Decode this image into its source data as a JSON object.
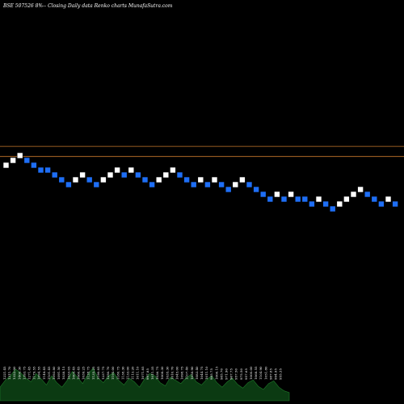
{
  "chart_data": {
    "type": "renko",
    "title": "BSE 507526  8%-- Closing Daily data  Renko  charts MunafaSutra.com",
    "colors": {
      "background": "#000000",
      "up_brick": "#ffffff",
      "down_brick": "#1e6ef5",
      "brick_outline": "#000000",
      "reference_line": "#c8782c",
      "volume_area": "#0b3a12",
      "volume_edge": "#1f7a2a",
      "text": "#ffffff"
    },
    "reference_lines": [
      {
        "level_bricks": 3.9
      },
      {
        "level_bricks": 1.8
      }
    ],
    "bricks": [
      {
        "level": 0,
        "direction": "up"
      },
      {
        "level": 1,
        "direction": "up"
      },
      {
        "level": 2,
        "direction": "up"
      },
      {
        "level": 1,
        "direction": "down"
      },
      {
        "level": 0,
        "direction": "down"
      },
      {
        "level": -1,
        "direction": "down"
      },
      {
        "level": -1,
        "direction": "down"
      },
      {
        "level": -2,
        "direction": "down"
      },
      {
        "level": -3,
        "direction": "down"
      },
      {
        "level": -4,
        "direction": "down"
      },
      {
        "level": -3,
        "direction": "up"
      },
      {
        "level": -2,
        "direction": "up"
      },
      {
        "level": -3,
        "direction": "down"
      },
      {
        "level": -4,
        "direction": "down"
      },
      {
        "level": -3,
        "direction": "up"
      },
      {
        "level": -2,
        "direction": "up"
      },
      {
        "level": -1,
        "direction": "up"
      },
      {
        "level": -2,
        "direction": "down"
      },
      {
        "level": -1,
        "direction": "up"
      },
      {
        "level": -2,
        "direction": "down"
      },
      {
        "level": -3,
        "direction": "down"
      },
      {
        "level": -4,
        "direction": "down"
      },
      {
        "level": -3,
        "direction": "up"
      },
      {
        "level": -2,
        "direction": "up"
      },
      {
        "level": -1,
        "direction": "up"
      },
      {
        "level": -2,
        "direction": "down"
      },
      {
        "level": -3,
        "direction": "down"
      },
      {
        "level": -4,
        "direction": "down"
      },
      {
        "level": -3,
        "direction": "up"
      },
      {
        "level": -4,
        "direction": "down"
      },
      {
        "level": -3,
        "direction": "up"
      },
      {
        "level": -4,
        "direction": "down"
      },
      {
        "level": -5,
        "direction": "down"
      },
      {
        "level": -4,
        "direction": "up"
      },
      {
        "level": -3,
        "direction": "up"
      },
      {
        "level": -4,
        "direction": "down"
      },
      {
        "level": -5,
        "direction": "down"
      },
      {
        "level": -6,
        "direction": "down"
      },
      {
        "level": -7,
        "direction": "down"
      },
      {
        "level": -6,
        "direction": "up"
      },
      {
        "level": -7,
        "direction": "down"
      },
      {
        "level": -6,
        "direction": "up"
      },
      {
        "level": -7,
        "direction": "down"
      },
      {
        "level": -7,
        "direction": "down"
      },
      {
        "level": -8,
        "direction": "down"
      },
      {
        "level": -7,
        "direction": "up"
      },
      {
        "level": -8,
        "direction": "down"
      },
      {
        "level": -9,
        "direction": "down"
      },
      {
        "level": -8,
        "direction": "up"
      },
      {
        "level": -7,
        "direction": "up"
      },
      {
        "level": -6,
        "direction": "up"
      },
      {
        "level": -5,
        "direction": "up"
      },
      {
        "level": -6,
        "direction": "down"
      },
      {
        "level": -7,
        "direction": "down"
      },
      {
        "level": -8,
        "direction": "down"
      },
      {
        "level": -7,
        "direction": "up"
      },
      {
        "level": -8,
        "direction": "down"
      }
    ],
    "volume_labels": [
      "1221.45",
      "1311.70",
      "1322.00",
      "1400.30",
      "1393.75",
      "1271.45",
      "1179.55",
      "1094.55",
      "1149.45",
      "1101.45",
      "1093.80",
      "1091.50",
      "1038.15",
      "1033.05",
      "1005.45",
      "1060.45",
      "1039.25",
      "1128.75",
      "1135.25",
      "1190.85",
      "1237.75",
      "1250.70",
      "1195.00",
      "1180.75",
      "1138.30",
      "1133.00",
      "1113.20",
      "1011.10",
      "1071.85",
      "997.85",
      "1011.35",
      "1036.75",
      "1008.30",
      "1035.30",
      "1010.70",
      "1045.00",
      "1098.75",
      "1107.40",
      "1058.90",
      "1083.40",
      "1044.75",
      "1011.10",
      "985.75",
      "1006.15",
      "985.70",
      "971.90",
      "967.75",
      "957.50",
      "975.50",
      "957.65",
      "1000.00",
      "1068.55",
      "1104.90",
      "1051.80",
      "987.85",
      "994.95",
      "955.35"
    ],
    "volume_profile": [
      0.3,
      0.45,
      0.55,
      0.7,
      0.62,
      0.5,
      0.42,
      0.6,
      0.48,
      0.35,
      0.55,
      0.4,
      0.3,
      0.45,
      0.65,
      0.52,
      0.38,
      0.58,
      0.72,
      0.5,
      0.4,
      0.55,
      0.62,
      0.45,
      0.35,
      0.5,
      0.42,
      0.3,
      0.48,
      0.6,
      0.55,
      0.4,
      0.33,
      0.52,
      0.45,
      0.38,
      0.5,
      0.58,
      0.42,
      0.35,
      0.47,
      0.55,
      0.4,
      0.3,
      0.42,
      0.5,
      0.36,
      0.28,
      0.4,
      0.46,
      0.32,
      0.25,
      0.38,
      0.44,
      0.3,
      0.22,
      0.18
    ]
  }
}
